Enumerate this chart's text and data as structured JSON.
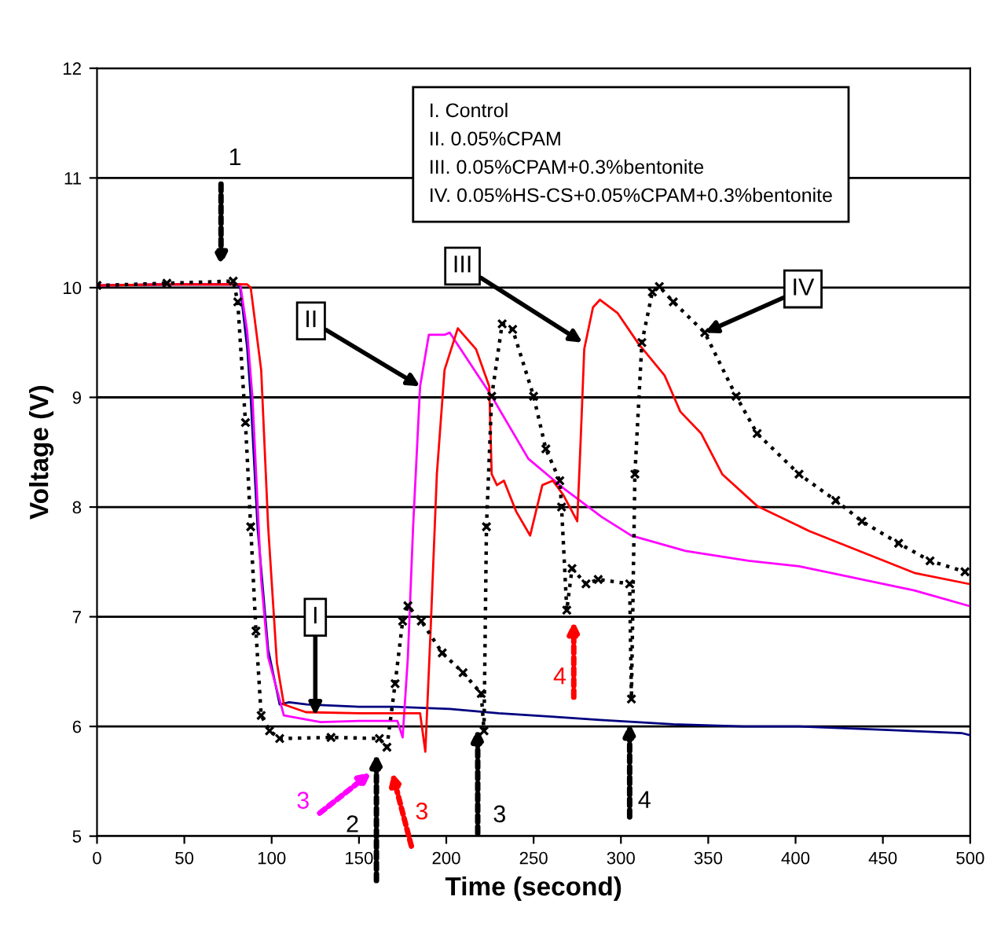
{
  "chart_data": {
    "type": "line",
    "xlabel": "Time (second)",
    "ylabel": "Voltage (V)",
    "xlim": [
      0,
      500
    ],
    "ylim": [
      5,
      12
    ],
    "xticks": [
      0,
      50,
      100,
      150,
      200,
      250,
      300,
      350,
      400,
      450,
      500
    ],
    "yticks": [
      5,
      6,
      7,
      8,
      9,
      10,
      11,
      12
    ],
    "grid": "y",
    "legend": false,
    "series": [
      {
        "color": "#000080",
        "x": [
          0,
          40,
          80,
          82,
          86,
          88,
          92,
          98,
          104.6,
          110,
          120,
          150,
          170,
          202,
          230,
          260,
          288,
          330,
          370,
          402,
          450,
          495,
          500
        ],
        "values": [
          10.02,
          10.03,
          10.03,
          10.0,
          9.45,
          9.0,
          7.8,
          6.7,
          6.2,
          6.22,
          6.2,
          6.18,
          6.18,
          6.16,
          6.12,
          6.09,
          6.06,
          6.02,
          6.0,
          6.0,
          5.97,
          5.94,
          5.92
        ]
      },
      {
        "color": "#ff00ff",
        "x": [
          0,
          40,
          82,
          86,
          89,
          94,
          98,
          107,
          128,
          150,
          172,
          175,
          178,
          181,
          185,
          190,
          199,
          202,
          226,
          247,
          268,
          289,
          306,
          337,
          373,
          402,
          423,
          468,
          499
        ],
        "values": [
          10.02,
          10.03,
          10.03,
          9.6,
          9.0,
          7.34,
          6.63,
          6.1,
          6.04,
          6.05,
          6.05,
          5.9,
          6.63,
          7.82,
          9.1,
          9.57,
          9.57,
          9.59,
          9.01,
          8.44,
          8.16,
          7.91,
          7.74,
          7.6,
          7.51,
          7.46,
          7.39,
          7.24,
          7.1
        ]
      },
      {
        "color": "#ff0000",
        "x": [
          0,
          40,
          86,
          88,
          94,
          98,
          103,
          107,
          119.6,
          150,
          185,
          188,
          191,
          194.6,
          199,
          206.6,
          217,
          224.6,
          226,
          229,
          233,
          240,
          248,
          255,
          261,
          267,
          275,
          277,
          279,
          284,
          288,
          298,
          310,
          325,
          334,
          346,
          358,
          378,
          408,
          438,
          468,
          499
        ],
        "values": [
          10.02,
          10.03,
          10.03,
          10.0,
          9.25,
          7.82,
          6.58,
          6.2,
          6.13,
          6.12,
          6.12,
          5.77,
          6.87,
          8.3,
          9.25,
          9.63,
          9.44,
          9.1,
          8.3,
          8.2,
          8.24,
          7.96,
          7.74,
          8.2,
          8.24,
          8.11,
          7.87,
          8.63,
          9.44,
          9.82,
          9.89,
          9.77,
          9.49,
          9.2,
          8.87,
          8.67,
          8.3,
          8.01,
          7.78,
          7.59,
          7.4,
          7.3
        ]
      },
      {
        "color": "#000000",
        "marker": "cross",
        "line_style": "dotted",
        "x": [
          0,
          40,
          78,
          80.6,
          85,
          88,
          91,
          94,
          98.8,
          104.6,
          134,
          161.7,
          166,
          170.7,
          175,
          178,
          185.7,
          197.7,
          209.6,
          220,
          221.6,
          223,
          226,
          232,
          238,
          250,
          257,
          265,
          266,
          269,
          272,
          280,
          287,
          305,
          306,
          308,
          312,
          318,
          322,
          330,
          348,
          366,
          378,
          402,
          423,
          438,
          459,
          477,
          497
        ],
        "values": [
          10.02,
          10.04,
          10.06,
          9.87,
          8.77,
          7.82,
          6.87,
          6.1,
          5.96,
          5.89,
          5.9,
          5.89,
          5.81,
          6.39,
          6.96,
          7.1,
          6.96,
          6.67,
          6.49,
          6.3,
          5.96,
          7.82,
          9.01,
          9.67,
          9.62,
          9.01,
          8.53,
          8.24,
          8.0,
          7.06,
          7.44,
          7.3,
          7.34,
          7.3,
          6.25,
          8.3,
          9.5,
          9.96,
          10.01,
          9.87,
          9.59,
          9.01,
          8.67,
          8.3,
          8.06,
          7.87,
          7.67,
          7.51,
          7.41
        ]
      }
    ],
    "annotations": [
      "I. Control\nII. 0.05%CPAM\nIII. 0.05%CPAM+0.3%bentonite\nIV. 0.05%HS-CS+0.05%CPAM+0.3%bentonite",
      {
        "text": "I",
        "x": 125,
        "y": 6.1
      },
      {
        "text": "II",
        "x": 185,
        "y": 9.1
      },
      {
        "text": "III",
        "x": 278,
        "y": 9.5
      },
      {
        "text": "IV",
        "x": 348,
        "y": 9.59
      },
      "1",
      {
        "text": "2",
        "x": 160,
        "y": 5.75
      },
      "3",
      "3",
      {
        "text": "3",
        "x": 218,
        "y": 5.98
      },
      "4",
      "4"
    ]
  }
}
